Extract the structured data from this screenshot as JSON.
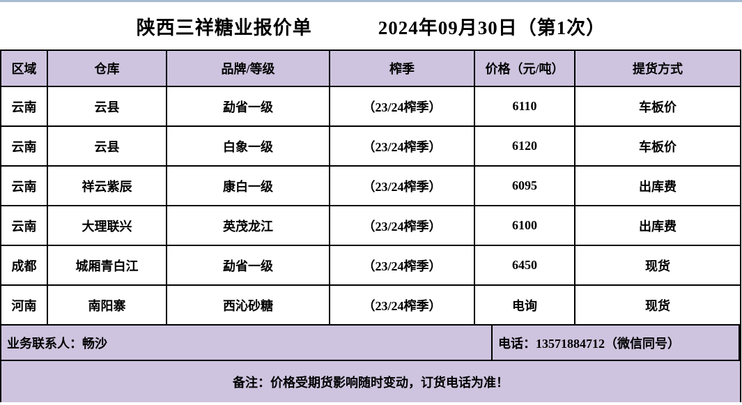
{
  "title": {
    "company": "陕西三祥糖业报价单",
    "date": "2024年09月30日（第1次）"
  },
  "table": {
    "headers": [
      "区域",
      "仓库",
      "品牌/等级",
      "榨季",
      "价格（元/吨）",
      "提货方式"
    ],
    "rows": [
      [
        "云南",
        "云县",
        "勐省一级",
        "（23/24榨季）",
        "6110",
        "车板价"
      ],
      [
        "云南",
        "云县",
        "白象一级",
        "（23/24榨季）",
        "6120",
        "车板价"
      ],
      [
        "云南",
        "祥云紫辰",
        "康白一级",
        "（23/24榨季）",
        "6095",
        "出库费"
      ],
      [
        "云南",
        "大理联兴",
        "英茂龙江",
        "（23/24榨季）",
        "6100",
        "出库费"
      ],
      [
        "成都",
        "城厢青白江",
        "勐省一级",
        "（23/24榨季）",
        "6450",
        "现货"
      ],
      [
        "河南",
        "南阳寨",
        "西沁砂糖",
        "（23/24榨季）",
        "电询",
        "现货"
      ]
    ]
  },
  "footer": {
    "contact": "业务联系人：畅沙",
    "phone": "电话：13571884712（微信同号）",
    "remark": "备注：价格受期货影响随时变动，订货电话为准！"
  },
  "colors": {
    "lavender": "#cec4df",
    "top_strip": "#a7bbd1",
    "border": "#000000"
  }
}
